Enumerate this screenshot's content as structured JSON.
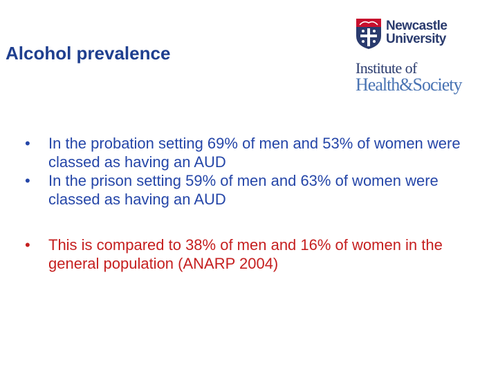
{
  "slide": {
    "title": "Alcohol prevalence"
  },
  "logo": {
    "university_line1": "Newcastle",
    "university_line2": "University",
    "institute_line1": "Institute of",
    "institute_line2": "Health&Society",
    "colors": {
      "navy": "#2a3b6e",
      "blue": "#4a74b3",
      "red": "#c8102e"
    }
  },
  "bullets": [
    {
      "text": "In the probation setting 69% of men and 53% of women were classed as having an AUD",
      "color": "#2546a8"
    },
    {
      "text": "In the prison setting 59% of men and 63% of women were classed as having an AUD",
      "color": "#2546a8"
    },
    {
      "text": "This is compared to 38% of men and 16% of women in the general population (ANARP 2004)",
      "color": "#c51f1f"
    }
  ],
  "bullet_symbol": "•"
}
